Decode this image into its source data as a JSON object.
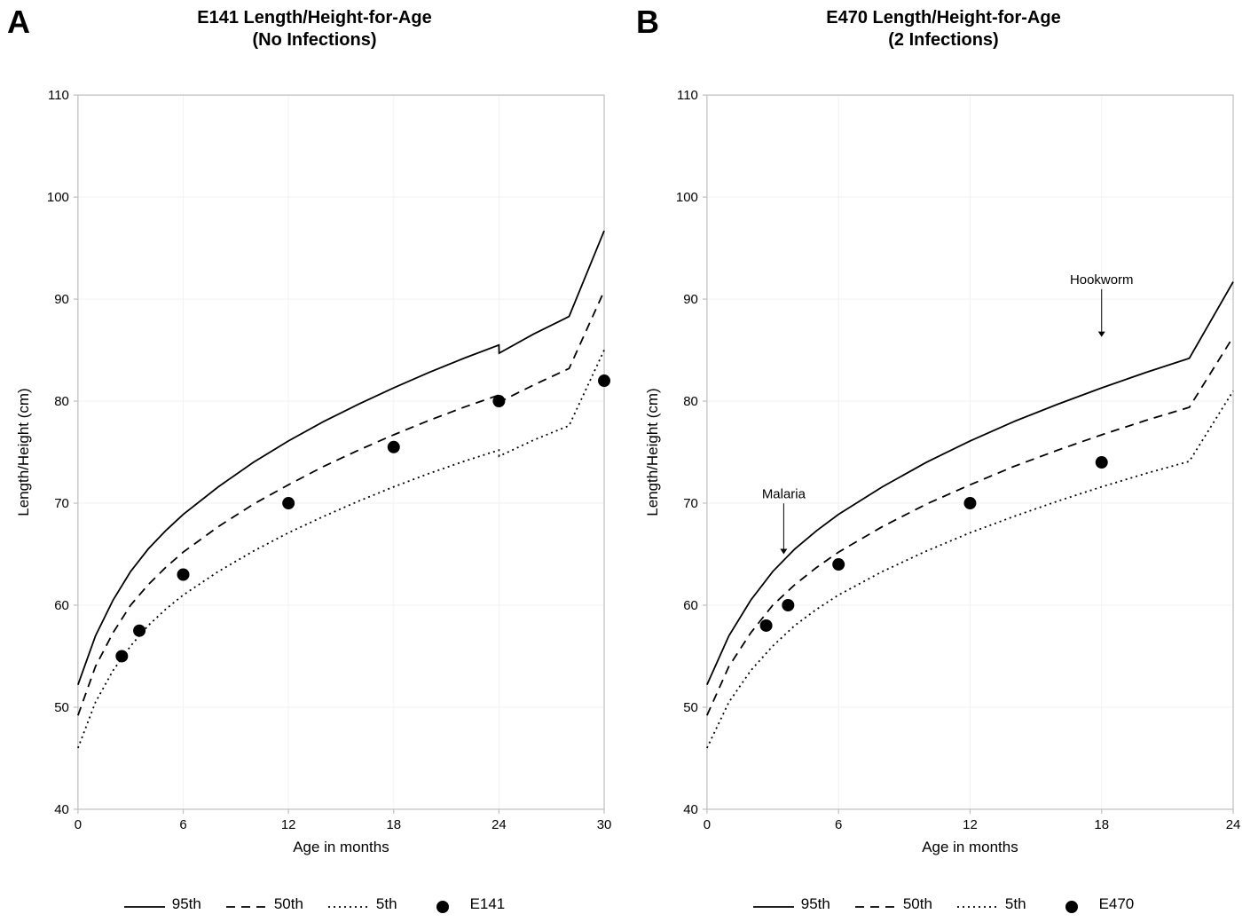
{
  "figure": {
    "background_color": "#ffffff",
    "grid_color": "#f2f2f2",
    "axis_color": "#bfbfbf",
    "text_color": "#000000",
    "series_color": "#000000",
    "marker_color": "#000000",
    "panel_label_fontsize": 36,
    "title_fontsize": 20,
    "axis_label_fontsize": 17,
    "tick_fontsize": 15,
    "legend_fontsize": 17,
    "annotation_fontsize": 15,
    "line_width": 1.8,
    "marker_radius": 7
  },
  "legend_items": [
    {
      "key": "p95",
      "label": "95th",
      "style": "solid"
    },
    {
      "key": "p50",
      "label": "50th",
      "style": "dashed"
    },
    {
      "key": "p5",
      "label": "5th",
      "style": "dotted"
    }
  ],
  "percentile_curves_30": {
    "x": [
      0,
      1,
      2,
      3,
      4,
      5,
      6,
      8,
      10,
      12,
      14,
      16,
      18,
      20,
      22,
      24,
      24.01,
      26,
      28,
      30
    ],
    "p95": [
      52.2,
      57.0,
      60.5,
      63.3,
      65.5,
      67.3,
      68.9,
      71.6,
      74.0,
      76.1,
      78.0,
      79.7,
      81.3,
      82.8,
      84.2,
      85.5,
      84.7,
      86.6,
      88.3,
      96.7
    ],
    "p50": [
      49.2,
      54.0,
      57.3,
      60.0,
      62.0,
      63.7,
      65.2,
      67.7,
      69.9,
      71.8,
      73.6,
      75.2,
      76.7,
      78.1,
      79.4,
      80.6,
      79.9,
      81.6,
      83.2,
      90.8
    ],
    "p5": [
      46.0,
      50.5,
      53.6,
      56.0,
      58.0,
      59.6,
      61.0,
      63.3,
      65.3,
      67.1,
      68.7,
      70.2,
      71.6,
      72.9,
      74.1,
      75.2,
      74.6,
      76.2,
      77.6,
      85.0
    ]
  },
  "percentile_curves_24": {
    "x": [
      0,
      1,
      2,
      3,
      4,
      5,
      6,
      8,
      10,
      12,
      14,
      16,
      18,
      20,
      22,
      24
    ],
    "p95": [
      52.2,
      57.0,
      60.5,
      63.3,
      65.5,
      67.3,
      68.9,
      71.6,
      74.0,
      76.1,
      78.0,
      79.7,
      81.3,
      82.8,
      84.2,
      91.7
    ],
    "p50": [
      49.2,
      54.0,
      57.3,
      60.0,
      62.0,
      63.7,
      65.2,
      67.7,
      69.9,
      71.8,
      73.6,
      75.2,
      76.7,
      78.1,
      79.4,
      86.3
    ],
    "p5": [
      46.0,
      50.5,
      53.6,
      56.0,
      58.0,
      59.6,
      61.0,
      63.3,
      65.3,
      67.1,
      68.7,
      70.2,
      71.6,
      72.9,
      74.1,
      81.0
    ]
  },
  "panels": [
    {
      "id": "A",
      "panel_label": "A",
      "title": "E141 Length/Height-for-Age\n(No Infections)",
      "xlabel": "Age in months",
      "ylabel": "Length/Height (cm)",
      "xlim": [
        0,
        30
      ],
      "ylim": [
        40,
        110
      ],
      "xtick_step": 6,
      "ytick_step": 10,
      "curves_key": "percentile_curves_30",
      "scatter_label": "E141",
      "scatter": {
        "x": [
          2.5,
          3.5,
          6,
          12,
          18,
          24,
          30
        ],
        "y": [
          55.0,
          57.5,
          63.0,
          70.0,
          75.5,
          80.0,
          82.0
        ]
      },
      "annotations": []
    },
    {
      "id": "B",
      "panel_label": "B",
      "title": "E470 Length/Height-for-Age\n(2 Infections)",
      "xlabel": "Age in months",
      "ylabel": "Length/Height (cm)",
      "xlim": [
        0,
        24
      ],
      "ylim": [
        40,
        110
      ],
      "xtick_step": 6,
      "ytick_step": 10,
      "curves_key": "percentile_curves_24",
      "scatter_label": "E470",
      "scatter": {
        "x": [
          2.7,
          3.7,
          6,
          12,
          18
        ],
        "y": [
          58.0,
          60.0,
          64.0,
          70.0,
          74.0
        ]
      },
      "annotations": [
        {
          "text": "Malaria",
          "x": 3.5,
          "y_text": 70.5,
          "arrow_to_y": 65.0
        },
        {
          "text": "Hookworm",
          "x": 18.0,
          "y_text": 91.5,
          "arrow_to_y": 86.3
        }
      ]
    }
  ]
}
